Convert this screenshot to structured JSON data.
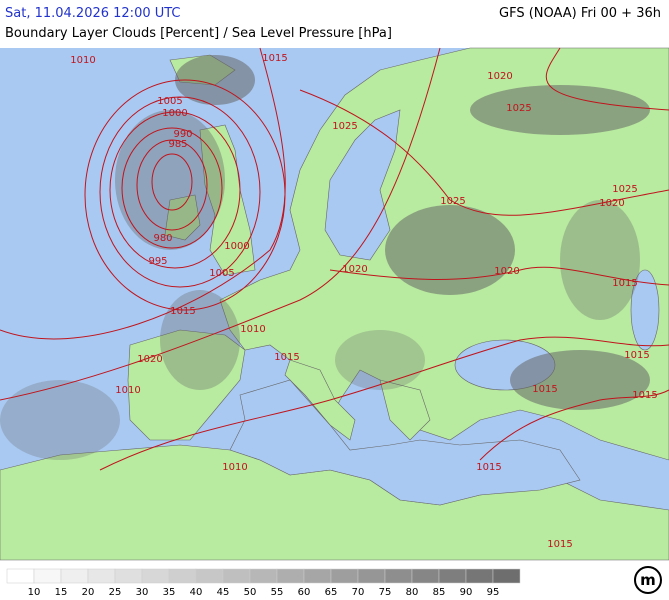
{
  "header": {
    "left": "Sat, 11.04.2026 12:00 UTC",
    "right": "GFS (NOAA) Fri 00 + 36h",
    "subtitle": "Boundary Layer Clouds [Percent] / Sea Level Pressure [hPa]"
  },
  "isobar_labels": [
    "1010",
    "1015",
    "1020",
    "1025",
    "1005",
    "1000",
    "990",
    "985",
    "1025",
    "1025",
    "1020",
    "1025",
    "980",
    "995",
    "1000",
    "1005",
    "1020",
    "1020",
    "1015",
    "1015",
    "1010",
    "1015",
    "1015",
    "1020",
    "1010",
    "1015",
    "1015",
    "1010",
    "1015",
    "1015"
  ],
  "legend": [
    10,
    15,
    20,
    25,
    30,
    35,
    40,
    45,
    50,
    55,
    60,
    65,
    70,
    75,
    80,
    85,
    90,
    95
  ],
  "logo": "m"
}
